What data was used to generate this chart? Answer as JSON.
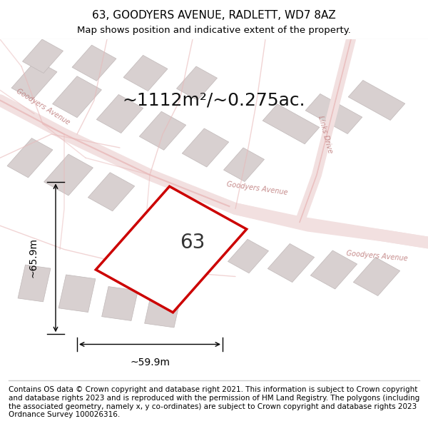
{
  "title_line1": "63, GOODYERS AVENUE, RADLETT, WD7 8AZ",
  "title_line2": "Map shows position and indicative extent of the property.",
  "area_text": "~1112m²/~0.275ac.",
  "label_63": "63",
  "dim_width": "~59.9m",
  "dim_height": "~65.9m",
  "footer_text": "Contains OS data © Crown copyright and database right 2021. This information is subject to Crown copyright and database rights 2023 and is reproduced with the permission of HM Land Registry. The polygons (including the associated geometry, namely x, y co-ordinates) are subject to Crown copyright and database rights 2023 Ordnance Survey 100026316.",
  "bg_color": "#ffffff",
  "map_bg_color": "#f5f0f0",
  "road_color": "#e8b8b8",
  "plot_color": "#cc0000",
  "plot_fill": "#ffffff",
  "street_label_color": "#c08080",
  "separator_color": "#cccccc",
  "title_fontsize": 11,
  "subtitle_fontsize": 9.5,
  "area_fontsize": 18,
  "label_fontsize": 20,
  "dim_fontsize": 10,
  "footer_fontsize": 7.5,
  "road_label_fontsize": 7
}
